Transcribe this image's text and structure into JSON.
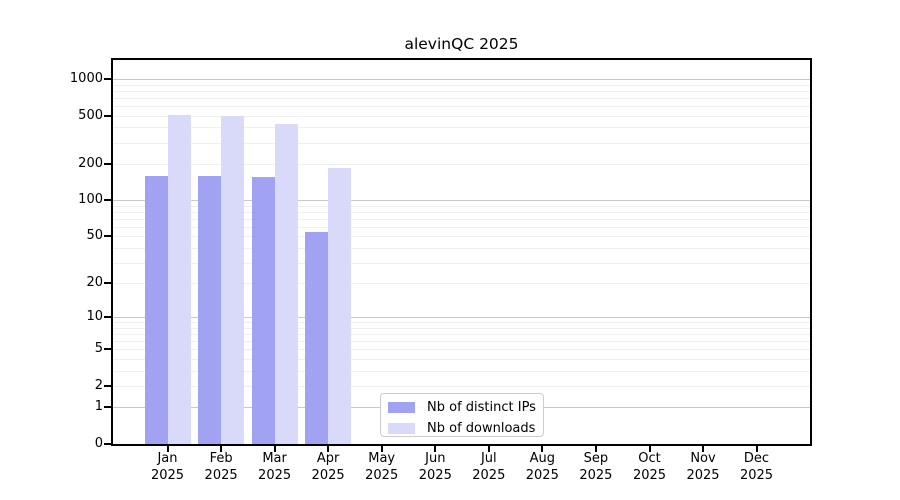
{
  "chart_data": {
    "type": "bar",
    "title": "alevinQC 2025",
    "categories": [
      "Jan 2025",
      "Feb 2025",
      "Mar 2025",
      "Apr 2025",
      "May 2025",
      "Jun 2025",
      "Jul 2025",
      "Aug 2025",
      "Sep 2025",
      "Oct 2025",
      "Nov 2025",
      "Dec 2025"
    ],
    "series": [
      {
        "name": "Nb of distinct IPs",
        "color": "#a2a2f3",
        "values": [
          160,
          158,
          157,
          54,
          0,
          0,
          0,
          0,
          0,
          0,
          0,
          0
        ]
      },
      {
        "name": "Nb of downloads",
        "color": "#d9d9f9",
        "values": [
          510,
          500,
          425,
          185,
          0,
          0,
          0,
          0,
          0,
          0,
          0,
          0
        ]
      }
    ],
    "xlabel": "",
    "ylabel": "",
    "yscale": "log1p",
    "ylim": [
      0,
      1434
    ],
    "yticks": [
      0,
      1,
      2,
      5,
      10,
      20,
      50,
      100,
      200,
      500,
      1000
    ],
    "grid": true,
    "grid_major_values": [
      1,
      10,
      100,
      1000
    ],
    "legend_position": "bottom-center"
  },
  "colors": {
    "grid_minor": "#efefef",
    "grid_major": "#c8c8c8",
    "axis": "#000000",
    "background": "#ffffff"
  }
}
